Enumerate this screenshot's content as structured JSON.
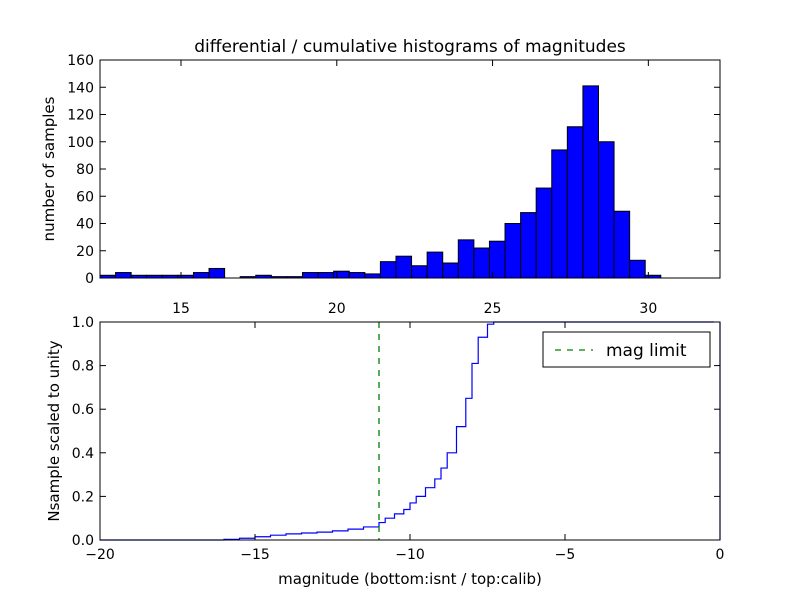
{
  "chart_data": [
    {
      "type": "bar",
      "title": "differential / cumulative histograms of magnitudes",
      "ylabel": "number of samples",
      "xlabel": "",
      "xlim": [
        12.4,
        32.3
      ],
      "ylim": [
        0,
        160
      ],
      "x_ticks": [
        15,
        20,
        25,
        30
      ],
      "x_tick_labels": [
        "15",
        "20",
        "25",
        "30"
      ],
      "y_ticks": [
        0,
        20,
        40,
        60,
        80,
        100,
        120,
        140,
        160
      ],
      "y_tick_labels": [
        "0",
        "20",
        "40",
        "60",
        "80",
        "100",
        "120",
        "140",
        "160"
      ],
      "bin_start": 12.4,
      "bin_width": 0.5,
      "values": [
        2,
        4,
        2,
        2,
        2,
        2,
        4,
        7,
        0,
        1,
        2,
        1,
        1,
        4,
        4,
        5,
        4,
        3,
        12,
        16,
        9,
        19,
        11,
        28,
        22,
        27,
        40,
        48,
        66,
        94,
        111,
        141,
        100,
        49,
        13,
        2
      ],
      "bar_color": "#0000ff",
      "grid": false
    },
    {
      "type": "line",
      "step": true,
      "ylabel": "Nsample scaled to unity",
      "xlabel": "magnitude (bottom:isnt / top:calib)",
      "xlim": [
        -20,
        0
      ],
      "ylim": [
        0,
        1.0
      ],
      "x_ticks": [
        -20,
        -15,
        -10,
        -5,
        0
      ],
      "x_tick_labels": [
        "−20",
        "−15",
        "−10",
        "−5",
        "0"
      ],
      "y_ticks": [
        0,
        0.2,
        0.4,
        0.6,
        0.8,
        1.0
      ],
      "y_tick_labels": [
        "0.0",
        "0.2",
        "0.4",
        "0.6",
        "0.8",
        "1.0"
      ],
      "series": [
        {
          "color": "#0000ff",
          "x": [
            -20,
            -16,
            -15.5,
            -15,
            -14.5,
            -14,
            -13.5,
            -13,
            -12.5,
            -12,
            -11.5,
            -11,
            -10.8,
            -10.5,
            -10.2,
            -10,
            -9.8,
            -9.5,
            -9.2,
            -9,
            -8.8,
            -8.5,
            -8.2,
            -8,
            -7.8,
            -7.5,
            -7.3
          ],
          "y": [
            0.0,
            0.003,
            0.008,
            0.015,
            0.022,
            0.028,
            0.032,
            0.036,
            0.042,
            0.05,
            0.06,
            0.08,
            0.1,
            0.12,
            0.14,
            0.17,
            0.2,
            0.24,
            0.28,
            0.33,
            0.4,
            0.52,
            0.65,
            0.81,
            0.93,
            0.99,
            1.0
          ]
        },
        {
          "name": "mag limit",
          "type": "vline",
          "x": -11,
          "color": "#008000",
          "dash": "6,6"
        }
      ],
      "legend_position": "top-right",
      "grid": false
    }
  ]
}
